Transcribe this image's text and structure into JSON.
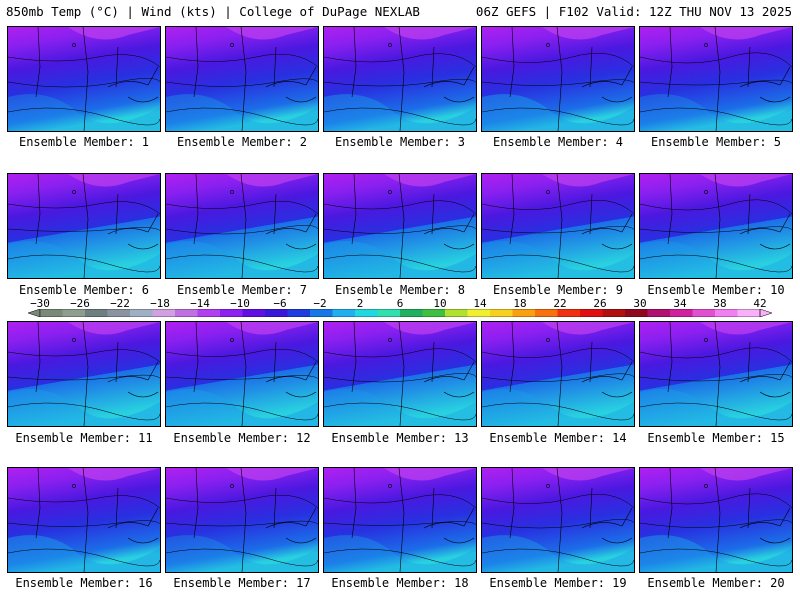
{
  "header": {
    "left": "850mb Temp (°C) | Wind (kts) | College of DuPage NEXLAB",
    "right": "06Z GEFS | F102 Valid: 12Z THU NOV 13 2025"
  },
  "members": [
    "Ensemble Member: 1",
    "Ensemble Member: 2",
    "Ensemble Member: 3",
    "Ensemble Member: 4",
    "Ensemble Member: 5",
    "Ensemble Member: 6",
    "Ensemble Member: 7",
    "Ensemble Member: 8",
    "Ensemble Member: 9",
    "Ensemble Member: 10",
    "Ensemble Member: 11",
    "Ensemble Member: 12",
    "Ensemble Member: 13",
    "Ensemble Member: 14",
    "Ensemble Member: 15",
    "Ensemble Member: 16",
    "Ensemble Member: 17",
    "Ensemble Member: 18",
    "Ensemble Member: 19",
    "Ensemble Member: 20"
  ],
  "colorbar": {
    "ticks": [
      "-30",
      "-26",
      "-22",
      "-18",
      "-14",
      "-10",
      "-6",
      "-2",
      "2",
      "6",
      "10",
      "14",
      "18",
      "22",
      "26",
      "30",
      "34",
      "38",
      "42"
    ],
    "colors": [
      "#7a8a78",
      "#8e9e8c",
      "#6e7f82",
      "#8a93a0",
      "#9fb0c4",
      "#d0a0e0",
      "#c070e0",
      "#b040f0",
      "#8e20f0",
      "#6010e0",
      "#3a18d8",
      "#1e3ee0",
      "#1878e8",
      "#20b0f0",
      "#20d8e0",
      "#30e0b0",
      "#20b060",
      "#40c040",
      "#b0e030",
      "#f0f030",
      "#f8d020",
      "#f8a010",
      "#f87010",
      "#f03010",
      "#e01010",
      "#b01010",
      "#900820",
      "#b01070",
      "#d020a0",
      "#e050d0",
      "#f080f0",
      "#f8b0f8"
    ]
  }
}
